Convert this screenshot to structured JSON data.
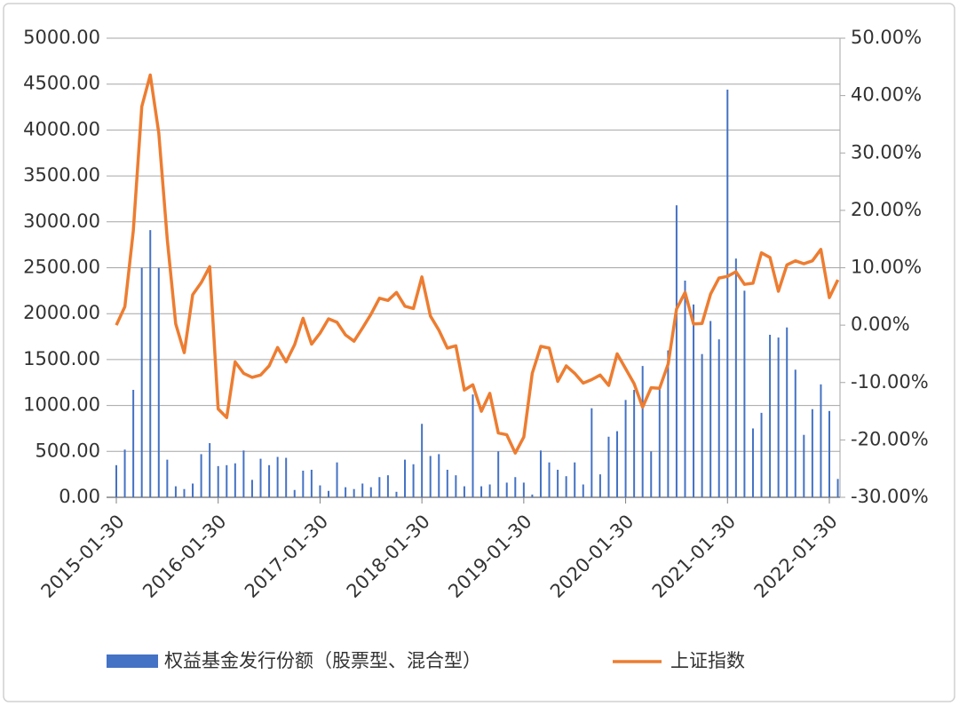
{
  "chart_data": {
    "type": "bar-line",
    "categories": [
      "2015-01-30",
      null,
      null,
      null,
      null,
      null,
      null,
      null,
      null,
      null,
      null,
      null,
      "2016-01-30",
      null,
      null,
      null,
      null,
      null,
      null,
      null,
      null,
      null,
      null,
      null,
      "2017-01-30",
      null,
      null,
      null,
      null,
      null,
      null,
      null,
      null,
      null,
      null,
      null,
      "2018-01-30",
      null,
      null,
      null,
      null,
      null,
      null,
      null,
      null,
      null,
      null,
      null,
      "2019-01-30",
      null,
      null,
      null,
      null,
      null,
      null,
      null,
      null,
      null,
      null,
      null,
      "2020-01-30",
      null,
      null,
      null,
      null,
      null,
      null,
      null,
      null,
      null,
      null,
      null,
      "2021-01-30",
      null,
      null,
      null,
      null,
      null,
      null,
      null,
      null,
      null,
      null,
      null,
      "2022-01-30",
      null
    ],
    "series": [
      {
        "name": "权益基金发行份额（股票型、混合型）",
        "type": "bar",
        "color": "#4472c4",
        "values": [
          350,
          520,
          1170,
          2500,
          2910,
          2500,
          410,
          120,
          90,
          150,
          470,
          590,
          340,
          350,
          370,
          510,
          190,
          420,
          350,
          440,
          430,
          80,
          290,
          300,
          130,
          70,
          380,
          110,
          90,
          150,
          110,
          220,
          240,
          60,
          410,
          360,
          800,
          450,
          470,
          300,
          240,
          120,
          1120,
          120,
          140,
          500,
          160,
          220,
          160,
          30,
          510,
          380,
          300,
          230,
          380,
          140,
          970,
          250,
          660,
          720,
          1060,
          1170,
          1430,
          500,
          1200,
          1600,
          3180,
          2360,
          2100,
          1560,
          1920,
          1720,
          4440,
          2600,
          2250,
          750,
          920,
          1770,
          1740,
          1850,
          1390,
          680,
          960,
          1230,
          940,
          200
        ]
      },
      {
        "name": "上证指数",
        "type": "line",
        "axis": "y2",
        "color": "#ed7d31",
        "values": [
          0,
          3.2,
          16.4,
          38.1,
          43.6,
          33.5,
          14.9,
          0.2,
          -4.8,
          5.3,
          7.4,
          10.2,
          -14.6,
          -16.1,
          -6.4,
          -8.4,
          -9.1,
          -8.7,
          -7.1,
          -3.9,
          -6.4,
          -3.4,
          1.2,
          -3.3,
          -1.4,
          1.1,
          0.5,
          -1.7,
          -2.8,
          -0.5,
          1.9,
          4.7,
          4.3,
          5.7,
          3.3,
          2.9,
          8.4,
          1.6,
          -0.9,
          -4.0,
          -3.6,
          -11.3,
          -10.4,
          -15.0,
          -11.9,
          -18.8,
          -19.1,
          -22.3,
          -19.5,
          -8.4,
          -3.7,
          -4.0,
          -9.8,
          -7.1,
          -8.4,
          -10.1,
          -9.5,
          -8.7,
          -10.5,
          -5.0,
          -7.6,
          -10.2,
          -14.3,
          -10.9,
          -11.0,
          -6.8,
          2.8,
          5.7,
          0.2,
          0.3,
          5.4,
          8.2,
          8.5,
          9.3,
          7.1,
          7.3,
          12.6,
          11.8,
          5.9,
          10.5,
          11.2,
          10.7,
          11.2,
          13.2,
          4.8,
          7.9
        ]
      }
    ],
    "ylim": [
      0,
      5000
    ],
    "yticks": [
      {
        "value": 0,
        "label": "0.00"
      },
      {
        "value": 500,
        "label": "500.00"
      },
      {
        "value": 1000,
        "label": "1000.00"
      },
      {
        "value": 1500,
        "label": "1500.00"
      },
      {
        "value": 2000,
        "label": "2000.00"
      },
      {
        "value": 2500,
        "label": "2500.00"
      },
      {
        "value": 3000,
        "label": "3000.00"
      },
      {
        "value": 3500,
        "label": "3500.00"
      },
      {
        "value": 4000,
        "label": "4000.00"
      },
      {
        "value": 4500,
        "label": "4500.00"
      },
      {
        "value": 5000,
        "label": "5000.00"
      }
    ],
    "y2lim": [
      -30,
      50
    ],
    "y2ticks": [
      {
        "value": -30,
        "label": "-30.00%"
      },
      {
        "value": -20,
        "label": "-20.00%"
      },
      {
        "value": -10,
        "label": "-10.00%"
      },
      {
        "value": 0,
        "label": "0.00%"
      },
      {
        "value": 10,
        "label": "10.00%"
      },
      {
        "value": 20,
        "label": "20.00%"
      },
      {
        "value": 30,
        "label": "30.00%"
      },
      {
        "value": 40,
        "label": "40.00%"
      },
      {
        "value": 50,
        "label": "50.00%"
      }
    ],
    "grid": true,
    "legend": "bottom"
  }
}
